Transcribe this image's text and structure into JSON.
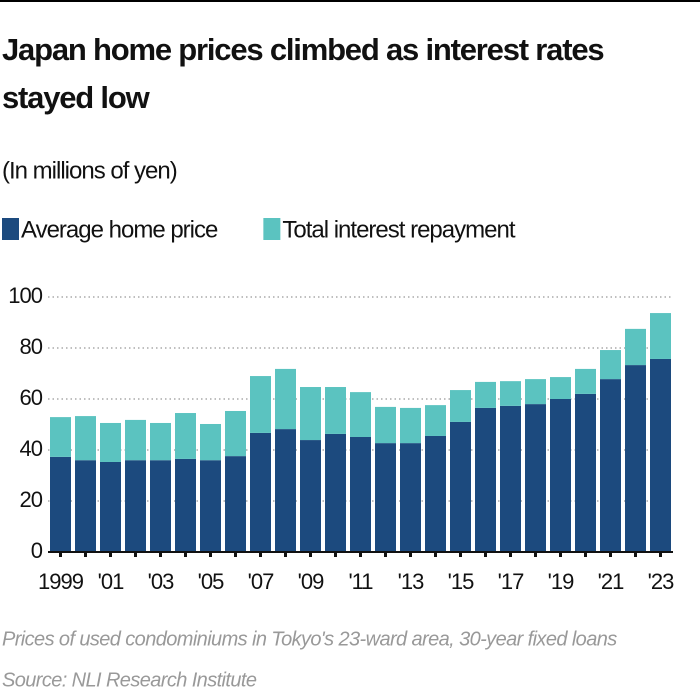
{
  "chart_data": {
    "type": "stacked_bar",
    "title_lines": [
      "Japan home prices climbed as interest rates",
      "stayed low"
    ],
    "subtitle": "(In millions of yen)",
    "categories": [
      "1999",
      null,
      "'01",
      null,
      "'03",
      null,
      "'05",
      null,
      "'07",
      null,
      "'09",
      null,
      "'11",
      null,
      "'13",
      null,
      "'15",
      null,
      "'17",
      null,
      "'19",
      null,
      "'21",
      null,
      "'23"
    ],
    "series": [
      {
        "name": "Average home price",
        "color": "#1c4a7e",
        "values": [
          37.3,
          36,
          35.3,
          36,
          36,
          36.5,
          36,
          37.6,
          46.7,
          48.2,
          43.9,
          46.3,
          45.1,
          42.7,
          42.7,
          45.5,
          51,
          56.5,
          57.3,
          58,
          60,
          62,
          67.8,
          73.3,
          75.7
        ]
      },
      {
        "name": "Total interest repayment",
        "color": "#5bc3c0",
        "values": [
          15.6,
          17.3,
          15.3,
          15.8,
          14.6,
          18,
          14.2,
          17.7,
          22.3,
          23.6,
          20.8,
          18.4,
          17.6,
          14.2,
          13.8,
          12.1,
          12.5,
          10.2,
          9.7,
          9.8,
          8.6,
          9.8,
          11.4,
          14.2,
          18
        ]
      }
    ],
    "ylim": [
      0,
      100
    ],
    "yticks": [
      0,
      20,
      40,
      60,
      80,
      100
    ],
    "grid": true,
    "note": "Prices of used condominiums in Tokyo's 23-ward area, 30-year fixed loans",
    "source": "Source: NLI Research Institute"
  }
}
